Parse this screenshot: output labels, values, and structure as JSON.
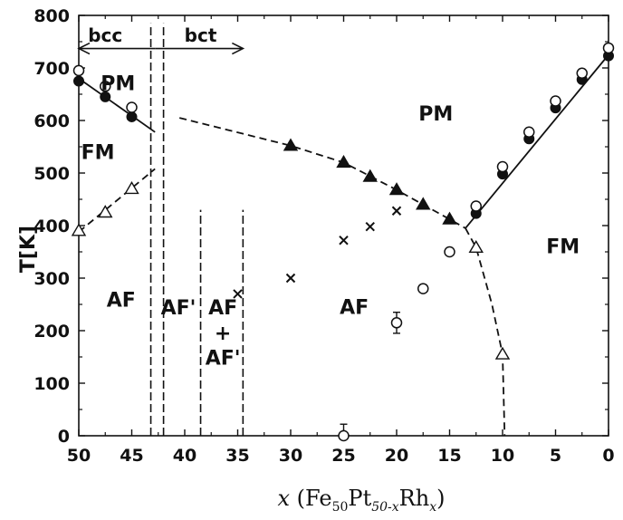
{
  "chart_data": {
    "type": "scatter",
    "xlabel_parts": [
      "x",
      " (Fe",
      "50",
      "Pt",
      "50-x",
      "Rh",
      "x",
      ")"
    ],
    "ylabel": "T[K]",
    "xlim": [
      50,
      0
    ],
    "ylim": [
      0,
      800
    ],
    "x_ticks": [
      "50",
      "45",
      "40",
      "35",
      "30",
      "25",
      "20",
      "15",
      "10",
      "5",
      "0"
    ],
    "y_ticks": [
      "0",
      "100",
      "200",
      "300",
      "400",
      "500",
      "600",
      "700",
      "800"
    ],
    "region_labels": {
      "pm_left": "PM",
      "fm_left": "FM",
      "af_left": "AF",
      "af_prime": "AF'",
      "af_mix_top": "AF",
      "af_mix_plus": "+",
      "af_mix_bottom": "AF'",
      "af_center": "AF",
      "pm_center": "PM",
      "fm_right": "FM",
      "bcc": "bcc",
      "bct": "bct"
    },
    "series": [
      {
        "marker": "filled-circle",
        "x": [
          50,
          47.5,
          45
        ],
        "y": [
          675,
          645,
          607
        ]
      },
      {
        "marker": "open-circle",
        "x": [
          50,
          47.5,
          45
        ],
        "y": [
          695,
          665,
          625
        ]
      },
      {
        "marker": "open-triangle",
        "x": [
          50,
          47.5,
          45
        ],
        "y": [
          390,
          425,
          470
        ]
      },
      {
        "marker": "filled-triangle",
        "x": [
          30,
          25,
          22.5,
          20,
          17.5,
          15
        ],
        "y": [
          552,
          520,
          493,
          468,
          440,
          412
        ]
      },
      {
        "marker": "cross",
        "x": [
          35,
          30,
          25,
          22.5,
          20
        ],
        "y": [
          270,
          300,
          372,
          398,
          428
        ]
      },
      {
        "marker": "open-circle",
        "x": [
          25,
          20,
          17.5,
          15
        ],
        "y": [
          0,
          215,
          280,
          350
        ]
      },
      {
        "marker": "open-triangle",
        "x": [
          12.5,
          10
        ],
        "y": [
          358,
          155
        ]
      },
      {
        "marker": "filled-circle",
        "x": [
          12.5,
          10,
          7.5,
          5,
          2.5,
          0
        ],
        "y": [
          423,
          498,
          565,
          624,
          678,
          723
        ]
      },
      {
        "marker": "open-circle",
        "x": [
          12.5,
          10,
          7.5,
          5,
          2.5,
          0
        ],
        "y": [
          437,
          512,
          578,
          637,
          690,
          738
        ]
      }
    ],
    "lines": [
      {
        "style": "solid",
        "x": [
          50,
          42.8
        ],
        "y": [
          680,
          578
        ]
      },
      {
        "style": "dashed",
        "x": [
          50,
          42.8
        ],
        "y": [
          388,
          508
        ]
      },
      {
        "style": "dashed",
        "x": [
          40.5,
          30,
          25,
          20,
          15,
          13.5
        ],
        "y": [
          605,
          552,
          520,
          468,
          412,
          395
        ]
      },
      {
        "style": "dashed",
        "x": [
          13.5,
          12.5,
          11,
          10,
          9.8
        ],
        "y": [
          395,
          358,
          250,
          155,
          0
        ]
      },
      {
        "style": "solid",
        "x": [
          13.5,
          0
        ],
        "y": [
          395,
          725
        ]
      }
    ],
    "boundaries": [
      {
        "style": "dashed",
        "x": 43.2,
        "y": [
          0,
          785
        ]
      },
      {
        "style": "dashed",
        "x": 42.0,
        "y": [
          0,
          785
        ]
      },
      {
        "style": "dashed",
        "x": 38.5,
        "y": [
          0,
          430
        ]
      },
      {
        "style": "dashed",
        "x": 34.5,
        "y": [
          0,
          430
        ]
      }
    ],
    "error_bars": [
      {
        "x": 25,
        "y": [
          0,
          22
        ]
      },
      {
        "x": 20,
        "y": [
          195,
          235
        ]
      }
    ],
    "arrows": [
      {
        "x": [
          42.8,
          50
        ],
        "y": 737
      },
      {
        "x": [
          42.8,
          34.5
        ],
        "y": 737
      }
    ],
    "grid": false,
    "legend": "none"
  }
}
